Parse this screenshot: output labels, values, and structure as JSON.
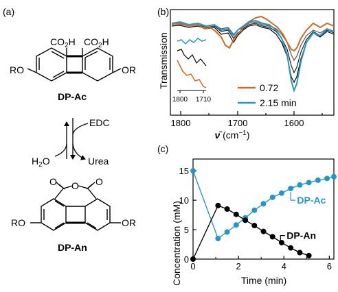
{
  "panel_a": {
    "label": "(a)",
    "top_structure": {
      "name": "DP-Ac",
      "group_left": "CO",
      "group_left_sub": "2",
      "group_left_end": "H",
      "group_right": "CO",
      "group_right_sub": "2",
      "group_right_end": "H",
      "sub_left": "RO",
      "sub_right": "OR"
    },
    "reaction": {
      "reagent": "EDC",
      "byproduct": "Urea",
      "reverse_reagent_main": "H",
      "reverse_reagent_sub": "2",
      "reverse_reagent_end": "O"
    },
    "bottom_structure": {
      "name": "DP-An",
      "o_left": "O",
      "o_mid": "O",
      "o_right": "O",
      "sub_left": "RO",
      "sub_right": "OR"
    }
  },
  "panel_b": {
    "label": "(b)",
    "ylabel": "Transmission",
    "xlabel_symbol": "ν̄",
    "xlabel_unit": " (cm",
    "xlabel_sup": "−1",
    "xlabel_close": ")",
    "xticks": [
      "1800",
      "1700",
      "1600"
    ],
    "inset_ticks": [
      "1800",
      "1710"
    ],
    "legend": [
      {
        "label": "0.72",
        "color": "#d2691e"
      },
      {
        "label": "2.15 min",
        "color": "#2596c8"
      }
    ]
  },
  "panel_c": {
    "label": "(c)",
    "chart_data": {
      "type": "line",
      "xlabel": "Time (min)",
      "ylabel": "Concentration (mM)",
      "xlim": [
        0,
        6.2
      ],
      "ylim": [
        0,
        17
      ],
      "xticks": [
        "0",
        "2",
        "4",
        "6"
      ],
      "yticks": [
        "0",
        "5",
        "10",
        "15"
      ],
      "series": [
        {
          "name": "DP-Ac",
          "color": "#2596c8",
          "x": [
            0,
            1.1,
            1.5,
            1.9,
            2.3,
            2.7,
            3.1,
            3.5,
            3.9,
            4.3,
            4.7,
            5.1,
            5.5,
            5.9,
            6.2
          ],
          "y": [
            15.0,
            3.5,
            4.6,
            5.8,
            7.0,
            8.3,
            9.4,
            10.5,
            11.2,
            12.0,
            12.6,
            13.0,
            13.4,
            13.7,
            14.0
          ]
        },
        {
          "name": "DP-An",
          "color": "#000000",
          "x": [
            0,
            1.1,
            1.5,
            1.9,
            2.3,
            2.7,
            3.1,
            3.5,
            3.9,
            4.3,
            4.7,
            5.1
          ],
          "y": [
            0,
            9.1,
            8.5,
            7.6,
            6.6,
            5.7,
            4.7,
            3.8,
            2.8,
            1.9,
            1.1,
            0.6
          ]
        }
      ]
    }
  }
}
